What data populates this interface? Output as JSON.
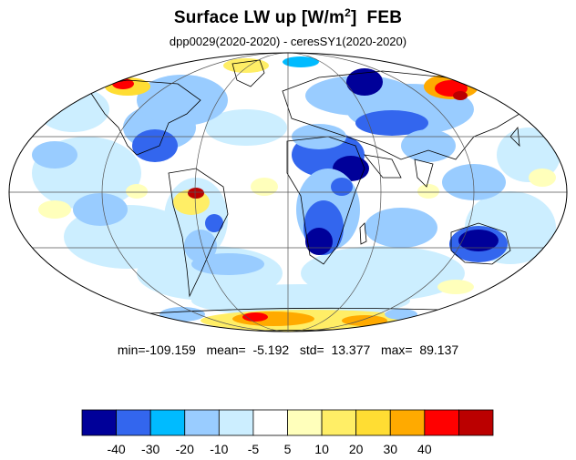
{
  "title": {
    "main": "Surface LW up [W/m",
    "sup": "2",
    "close": "]",
    "month": "FEB"
  },
  "subtitle": "dpp0029(2020-2020) - ceresSY1(2020-2020)",
  "stats": {
    "text": "min=-109.159   mean=  -5.192   std=  13.377   max=  89.137",
    "min": -109.159,
    "mean": -5.192,
    "std": 13.377,
    "max": 89.137
  },
  "colorbar": {
    "colors": [
      "#000099",
      "#3366ee",
      "#00bbff",
      "#99ccff",
      "#cceeff",
      "#ffffff",
      "#ffffbb",
      "#ffee66",
      "#ffdd33",
      "#ffaa00",
      "#ff0000",
      "#bb0000"
    ],
    "levels": [
      -40,
      -30,
      -20,
      -10,
      -5,
      5,
      10,
      20,
      30,
      40
    ],
    "labels": [
      "-40",
      "-30",
      "-20",
      "-10",
      "-5",
      "5",
      "10",
      "20",
      "30",
      "40"
    ]
  },
  "map": {
    "projection": "Mollweide",
    "field": "difference",
    "graticule": true
  }
}
